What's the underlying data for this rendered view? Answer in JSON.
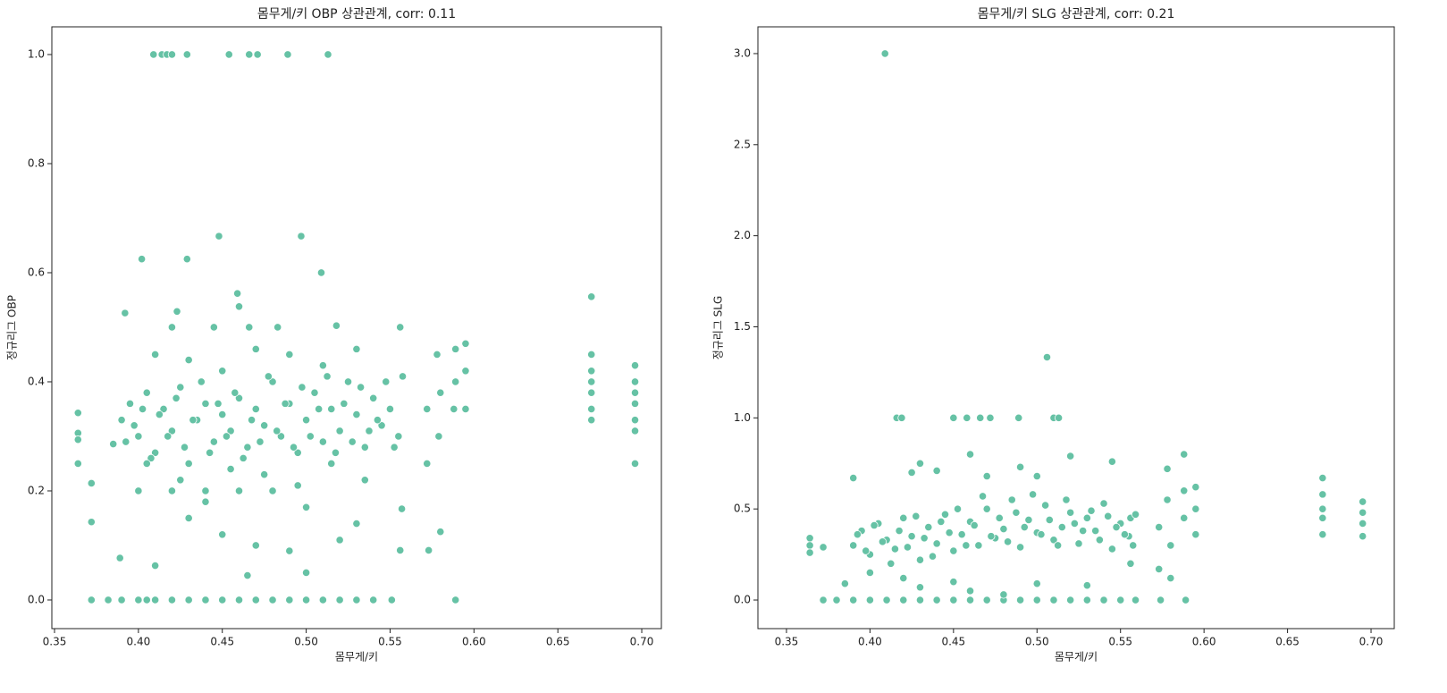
{
  "chart_data": [
    {
      "type": "scatter",
      "title": "몸무게/키 OBP 상관관계, corr: 0.11",
      "xlabel": "몸무게/키",
      "ylabel": "정규리그 OBP",
      "color": "#66c2a5",
      "xlim": [
        0.3484,
        0.7117
      ],
      "ylim": [
        -0.0525,
        1.0508
      ],
      "xticks": [
        0.35,
        {
          "value": 0.4,
          "label": "0.40"
        },
        0.45,
        {
          "value": 0.5,
          "label": "0.50"
        },
        0.55,
        {
          "value": 0.6,
          "label": "0.60"
        },
        0.65,
        {
          "value": 0.7,
          "label": "0.70"
        }
      ],
      "yticks": [
        {
          "value": 0,
          "label": "0.0"
        },
        0.2,
        0.4,
        0.6,
        0.8,
        {
          "value": 1,
          "label": "1.0"
        }
      ],
      "x": [
        0.372,
        0.382,
        0.39,
        0.4,
        0.405,
        0.41,
        0.42,
        0.43,
        0.44,
        0.45,
        0.46,
        0.47,
        0.48,
        0.49,
        0.5,
        0.51,
        0.52,
        0.53,
        0.54,
        0.551,
        0.589,
        0.409,
        0.414,
        0.417,
        0.42,
        0.429,
        0.454,
        0.466,
        0.471,
        0.489,
        0.513,
        0.448,
        0.497,
        0.509,
        0.402,
        0.429,
        0.459,
        0.46,
        0.392,
        0.423,
        0.67,
        0.518,
        0.364,
        0.364,
        0.364,
        0.364,
        0.372,
        0.372,
        0.389,
        0.385,
        0.39,
        0.395,
        0.4,
        0.405,
        0.41,
        0.415,
        0.42,
        0.425,
        0.43,
        0.435,
        0.44,
        0.445,
        0.45,
        0.455,
        0.46,
        0.465,
        0.47,
        0.475,
        0.48,
        0.485,
        0.49,
        0.495,
        0.5,
        0.505,
        0.51,
        0.515,
        0.52,
        0.525,
        0.53,
        0.535,
        0.54,
        0.545,
        0.55,
        0.555,
        0.3925,
        0.3975,
        0.4025,
        0.4075,
        0.4125,
        0.4175,
        0.4225,
        0.4275,
        0.4325,
        0.4375,
        0.4425,
        0.4475,
        0.4525,
        0.4575,
        0.4625,
        0.4675,
        0.4725,
        0.4775,
        0.4825,
        0.4875,
        0.4925,
        0.4975,
        0.5025,
        0.5075,
        0.5125,
        0.5175,
        0.5225,
        0.5275,
        0.5325,
        0.5375,
        0.5425,
        0.5475,
        0.5525,
        0.5575,
        0.4,
        0.42,
        0.44,
        0.46,
        0.48,
        0.43,
        0.45,
        0.47,
        0.49,
        0.5,
        0.465,
        0.41,
        0.52,
        0.44,
        0.5,
        0.53,
        0.405,
        0.425,
        0.455,
        0.475,
        0.495,
        0.515,
        0.535,
        0.41,
        0.43,
        0.45,
        0.47,
        0.49,
        0.51,
        0.53,
        0.42,
        0.445,
        0.466,
        0.483,
        0.556,
        0.557,
        0.556,
        0.572,
        0.572,
        0.573,
        0.578,
        0.579,
        0.58,
        0.58,
        0.588,
        0.589,
        0.589,
        0.595,
        0.595,
        0.595,
        0.67,
        0.67,
        0.67,
        0.67,
        0.67,
        0.67,
        0.696,
        0.696,
        0.696,
        0.696,
        0.696,
        0.696,
        0.696
      ],
      "y": [
        0,
        0,
        0,
        0,
        0,
        0,
        0,
        0,
        0,
        0,
        0,
        0,
        0,
        0,
        0,
        0,
        0,
        0,
        0,
        0,
        0,
        1,
        1,
        1,
        1,
        1,
        1,
        1,
        1,
        1,
        1,
        0.667,
        0.667,
        0.6,
        0.625,
        0.625,
        0.562,
        0.538,
        0.526,
        0.529,
        0.556,
        0.503,
        0.343,
        0.306,
        0.294,
        0.25,
        0.214,
        0.143,
        0.077,
        0.286,
        0.33,
        0.36,
        0.3,
        0.38,
        0.27,
        0.35,
        0.31,
        0.39,
        0.25,
        0.33,
        0.36,
        0.29,
        0.34,
        0.31,
        0.37,
        0.28,
        0.35,
        0.32,
        0.4,
        0.3,
        0.36,
        0.27,
        0.33,
        0.38,
        0.29,
        0.35,
        0.31,
        0.4,
        0.34,
        0.28,
        0.37,
        0.32,
        0.35,
        0.3,
        0.29,
        0.32,
        0.35,
        0.26,
        0.34,
        0.3,
        0.37,
        0.28,
        0.33,
        0.4,
        0.27,
        0.36,
        0.3,
        0.38,
        0.26,
        0.33,
        0.29,
        0.41,
        0.31,
        0.36,
        0.28,
        0.39,
        0.3,
        0.35,
        0.41,
        0.27,
        0.36,
        0.29,
        0.39,
        0.31,
        0.33,
        0.4,
        0.28,
        0.41,
        0.2,
        0.2,
        0.2,
        0.2,
        0.2,
        0.15,
        0.12,
        0.1,
        0.09,
        0.05,
        0.045,
        0.063,
        0.11,
        0.18,
        0.17,
        0.14,
        0.25,
        0.22,
        0.24,
        0.23,
        0.21,
        0.25,
        0.22,
        0.45,
        0.44,
        0.42,
        0.46,
        0.45,
        0.43,
        0.46,
        0.5,
        0.5,
        0.5,
        0.5,
        0.5,
        0.167,
        0.091,
        0.25,
        0.35,
        0.091,
        0.45,
        0.3,
        0.125,
        0.38,
        0.35,
        0.4,
        0.46,
        0.47,
        0.42,
        0.35,
        0.33,
        0.35,
        0.38,
        0.4,
        0.42,
        0.45,
        0.25,
        0.31,
        0.33,
        0.36,
        0.38,
        0.4,
        0.43
      ]
    },
    {
      "type": "scatter",
      "title": "몸무게/키 SLG 상관관계, corr: 0.21",
      "xlabel": "몸무게/키",
      "ylabel": "정규리그 SLG",
      "color": "#66c2a5",
      "xlim": [
        0.3329,
        0.7139
      ],
      "ylim": [
        -0.157,
        3.147
      ],
      "xticks": [
        0.35,
        {
          "value": 0.4,
          "label": "0.40"
        },
        0.45,
        {
          "value": 0.5,
          "label": "0.50"
        },
        0.55,
        {
          "value": 0.6,
          "label": "0.60"
        },
        0.65,
        {
          "value": 0.7,
          "label": "0.70"
        }
      ],
      "yticks": [
        {
          "value": 0,
          "label": "0.0"
        },
        0.5,
        {
          "value": 1,
          "label": "1.0"
        },
        1.5,
        {
          "value": 2,
          "label": "2.0"
        },
        2.5,
        {
          "value": 3,
          "label": "3.0"
        }
      ],
      "x": [
        0.372,
        0.38,
        0.39,
        0.4,
        0.41,
        0.42,
        0.43,
        0.44,
        0.45,
        0.46,
        0.47,
        0.48,
        0.49,
        0.5,
        0.51,
        0.52,
        0.53,
        0.54,
        0.55,
        0.559,
        0.574,
        0.589,
        0.416,
        0.419,
        0.45,
        0.458,
        0.466,
        0.472,
        0.489,
        0.51,
        0.513,
        0.409,
        0.506,
        0.364,
        0.364,
        0.364,
        0.372,
        0.385,
        0.39,
        0.39,
        0.395,
        0.4,
        0.405,
        0.41,
        0.415,
        0.42,
        0.425,
        0.43,
        0.435,
        0.44,
        0.445,
        0.45,
        0.455,
        0.46,
        0.465,
        0.47,
        0.475,
        0.48,
        0.485,
        0.49,
        0.495,
        0.5,
        0.505,
        0.51,
        0.515,
        0.52,
        0.525,
        0.53,
        0.535,
        0.54,
        0.545,
        0.55,
        0.555,
        0.3925,
        0.3975,
        0.4025,
        0.4075,
        0.4125,
        0.4175,
        0.4225,
        0.4275,
        0.4325,
        0.4375,
        0.4425,
        0.4475,
        0.4525,
        0.4575,
        0.4625,
        0.4675,
        0.4725,
        0.4775,
        0.4825,
        0.4875,
        0.4925,
        0.4975,
        0.5025,
        0.5075,
        0.5125,
        0.5175,
        0.5225,
        0.5275,
        0.5325,
        0.5375,
        0.5425,
        0.5475,
        0.5525,
        0.5575,
        0.43,
        0.44,
        0.46,
        0.49,
        0.52,
        0.545,
        0.425,
        0.47,
        0.5,
        0.43,
        0.46,
        0.48,
        0.45,
        0.42,
        0.5,
        0.53,
        0.4,
        0.556,
        0.556,
        0.559,
        0.573,
        0.573,
        0.578,
        0.578,
        0.58,
        0.58,
        0.588,
        0.588,
        0.588,
        0.595,
        0.595,
        0.595,
        0.671,
        0.671,
        0.671,
        0.671,
        0.671,
        0.695,
        0.695,
        0.695,
        0.695
      ],
      "y": [
        0,
        0,
        0,
        0,
        0,
        0,
        0,
        0,
        0,
        0,
        0,
        0,
        0,
        0,
        0,
        0,
        0,
        0,
        0,
        0,
        0,
        0,
        1,
        1,
        1,
        1,
        1,
        1,
        1,
        1,
        1,
        3,
        1.333,
        0.34,
        0.3,
        0.26,
        0.29,
        0.09,
        0.67,
        0.3,
        0.38,
        0.25,
        0.42,
        0.33,
        0.28,
        0.45,
        0.35,
        0.22,
        0.4,
        0.31,
        0.47,
        0.27,
        0.36,
        0.43,
        0.3,
        0.5,
        0.34,
        0.39,
        0.55,
        0.29,
        0.44,
        0.37,
        0.52,
        0.33,
        0.4,
        0.48,
        0.31,
        0.45,
        0.38,
        0.53,
        0.28,
        0.42,
        0.35,
        0.36,
        0.27,
        0.41,
        0.32,
        0.2,
        0.38,
        0.29,
        0.46,
        0.34,
        0.24,
        0.43,
        0.37,
        0.5,
        0.3,
        0.41,
        0.57,
        0.35,
        0.45,
        0.32,
        0.48,
        0.4,
        0.58,
        0.36,
        0.44,
        0.3,
        0.55,
        0.42,
        0.38,
        0.49,
        0.33,
        0.46,
        0.4,
        0.36,
        0.3,
        0.75,
        0.71,
        0.8,
        0.73,
        0.79,
        0.76,
        0.7,
        0.68,
        0.68,
        0.07,
        0.05,
        0.03,
        0.1,
        0.12,
        0.09,
        0.08,
        0.15,
        0.2,
        0.45,
        0.47,
        0.17,
        0.4,
        0.72,
        0.55,
        0.3,
        0.12,
        0.8,
        0.6,
        0.45,
        0.62,
        0.5,
        0.36,
        0.67,
        0.58,
        0.5,
        0.45,
        0.36,
        0.54,
        0.48,
        0.42,
        0.35
      ]
    }
  ]
}
